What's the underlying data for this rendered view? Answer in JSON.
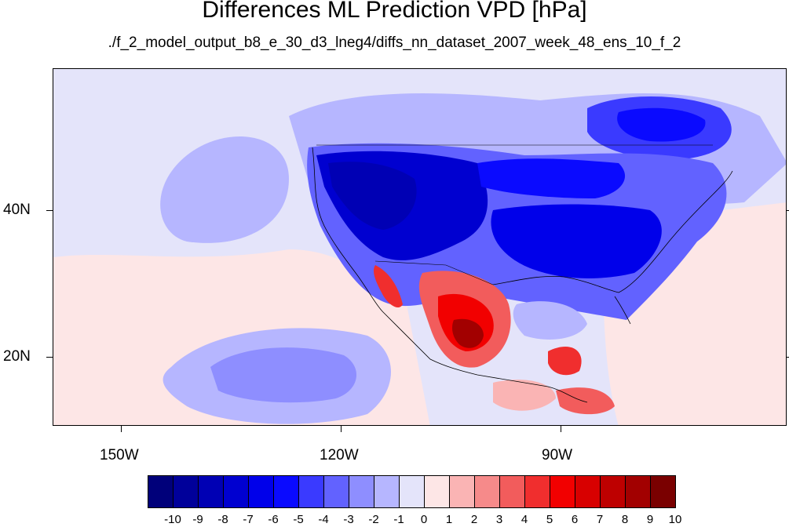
{
  "title": "Differences ML Prediction VPD [hPa]",
  "subtitle": "./f_2_model_output_b8_e_30_d3_lneg4/diffs_nn_dataset_2007_week_48_ens_10_f_2",
  "axes": {
    "lat_labels": [
      "40N",
      "20N"
    ],
    "lon_labels": [
      "150W",
      "120W",
      "90W"
    ]
  },
  "colorbar": {
    "labels": [
      "-10",
      "-9",
      "-8",
      "-7",
      "-6",
      "-5",
      "-4",
      "-3",
      "-2",
      "-1",
      "0",
      "1",
      "2",
      "3",
      "4",
      "5",
      "6",
      "7",
      "8",
      "9",
      "10"
    ],
    "colors": [
      "#00007a",
      "#00009a",
      "#0000b4",
      "#0000d0",
      "#0000ea",
      "#0a0aff",
      "#3a3aff",
      "#6262ff",
      "#8e8eff",
      "#b6b6ff",
      "#e4e4fa",
      "#fde6e6",
      "#fab4b4",
      "#f68a8a",
      "#f25c5c",
      "#f02e2e",
      "#f20000",
      "#d80000",
      "#be0000",
      "#a20000",
      "#7a0000"
    ]
  }
}
